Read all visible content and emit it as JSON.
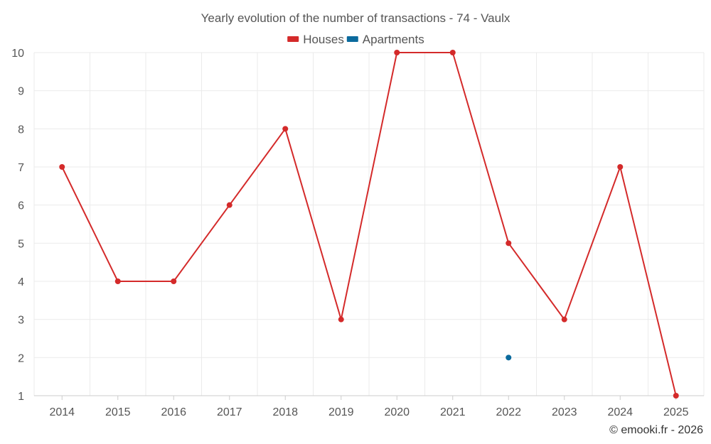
{
  "chart_data": {
    "type": "line",
    "title": "Yearly evolution of the number of transactions - 74 - Vaulx",
    "categories": [
      "2014",
      "2015",
      "2016",
      "2017",
      "2018",
      "2019",
      "2020",
      "2021",
      "2022",
      "2023",
      "2024",
      "2025"
    ],
    "series": [
      {
        "name": "Houses",
        "color": "#d42a2a",
        "values": [
          7,
          4,
          4,
          6,
          8,
          3,
          10,
          10,
          5,
          3,
          7,
          1
        ]
      },
      {
        "name": "Apartments",
        "color": "#0b6a9d",
        "values": [
          null,
          null,
          null,
          null,
          null,
          null,
          null,
          null,
          2,
          null,
          null,
          null
        ]
      }
    ],
    "ylim": [
      1,
      10
    ],
    "yticks": [
      1,
      2,
      3,
      4,
      5,
      6,
      7,
      8,
      9,
      10
    ],
    "xlabel": "",
    "ylabel": "",
    "grid": true,
    "legend": "top-center"
  },
  "credit": "© emooki.fr - 2026"
}
